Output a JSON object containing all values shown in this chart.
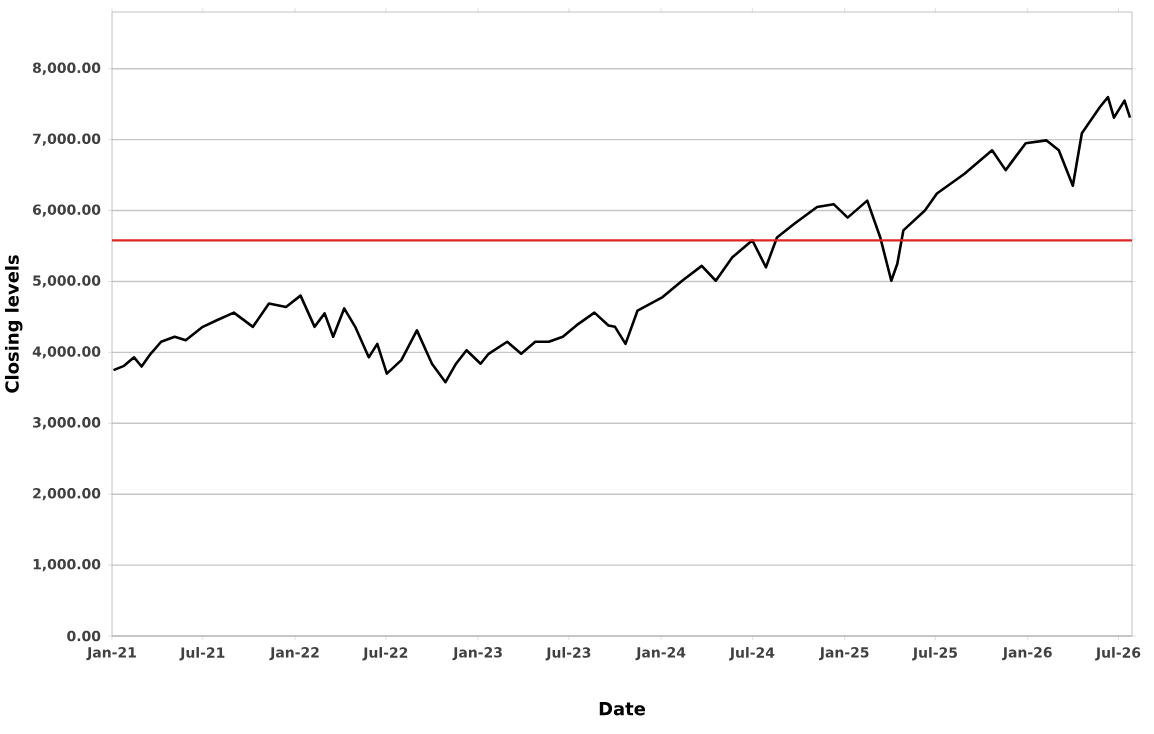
{
  "chart_data": {
    "type": "line",
    "xlabel": "Date",
    "ylabel": "Closing levels",
    "x": [
      "2021-01-04",
      "2021-01-25",
      "2021-02-14",
      "2021-03-01",
      "2021-03-19",
      "2021-04-09",
      "2021-05-06",
      "2021-05-28",
      "2021-07-01",
      "2021-07-28",
      "2021-09-01",
      "2021-10-09",
      "2021-11-10",
      "2021-12-14",
      "2022-01-12",
      "2022-02-09",
      "2022-03-01",
      "2022-03-18",
      "2022-04-09",
      "2022-05-01",
      "2022-05-28",
      "2022-06-14",
      "2022-07-03",
      "2022-08-01",
      "2022-09-01",
      "2022-10-01",
      "2022-10-28",
      "2022-11-18",
      "2022-12-09",
      "2023-01-06",
      "2023-01-22",
      "2023-02-28",
      "2023-03-28",
      "2023-04-25",
      "2023-05-22",
      "2023-06-19",
      "2023-07-16",
      "2023-08-21",
      "2023-09-18",
      "2023-10-01",
      "2023-10-22",
      "2023-11-15",
      "2024-01-04",
      "2024-02-12",
      "2024-03-22",
      "2024-04-19",
      "2024-05-22",
      "2024-07-01",
      "2024-07-28",
      "2024-08-19",
      "2024-09-22",
      "2024-11-07",
      "2024-12-10",
      "2025-01-07",
      "2025-02-15",
      "2025-03-13",
      "2025-04-04",
      "2025-04-16",
      "2025-04-28",
      "2025-06-10",
      "2025-07-04",
      "2025-08-28",
      "2025-10-22",
      "2025-11-18",
      "2025-12-28",
      "2026-02-07",
      "2026-03-04",
      "2026-04-01",
      "2026-04-19",
      "2026-05-25",
      "2026-06-10",
      "2026-06-22",
      "2026-07-13",
      "2026-07-24"
    ],
    "series": [
      {
        "color": "#000000",
        "values": [
          3750,
          3810,
          3930,
          3800,
          3980,
          4150,
          4220,
          4170,
          4360,
          4450,
          4560,
          4360,
          4690,
          4640,
          4800,
          4360,
          4550,
          4220,
          4620,
          4360,
          3930,
          4120,
          3700,
          3890,
          4310,
          3840,
          3580,
          3840,
          4030,
          3840,
          3980,
          4150,
          3980,
          4150,
          4150,
          4220,
          4380,
          4560,
          4380,
          4360,
          4120,
          4590,
          4780,
          5010,
          5220,
          5010,
          5340,
          5580,
          5200,
          5620,
          5810,
          6050,
          6090,
          5900,
          6140,
          5620,
          5010,
          5250,
          5720,
          6000,
          6240,
          6520,
          6850,
          6570,
          6950,
          6990,
          6850,
          6350,
          7090,
          7460,
          7600,
          7310,
          7550,
          7310
        ]
      }
    ],
    "xlim": [
      "2021-01-01",
      "2026-07-28"
    ],
    "xticks": [
      {
        "value": "2021-01-01",
        "label": "Jan-21"
      },
      {
        "value": "2021-07-01",
        "label": "Jul-21"
      },
      {
        "value": "2022-01-01",
        "label": "Jan-22"
      },
      {
        "value": "2022-07-01",
        "label": "Jul-22"
      },
      {
        "value": "2023-01-01",
        "label": "Jan-23"
      },
      {
        "value": "2023-07-01",
        "label": "Jul-23"
      },
      {
        "value": "2024-01-01",
        "label": "Jan-24"
      },
      {
        "value": "2024-07-01",
        "label": "Jul-24"
      },
      {
        "value": "2025-01-01",
        "label": "Jan-25"
      },
      {
        "value": "2025-07-01",
        "label": "Jul-25"
      },
      {
        "value": "2026-01-01",
        "label": "Jan-26"
      },
      {
        "value": "2026-07-01",
        "label": "Jul-26"
      }
    ],
    "ylim": [
      0,
      8800
    ],
    "yticks": [
      {
        "value": 0,
        "label": "0.00"
      },
      {
        "value": 1000,
        "label": "1,000.00"
      },
      {
        "value": 2000,
        "label": "2,000.00"
      },
      {
        "value": 3000,
        "label": "3,000.00"
      },
      {
        "value": 4000,
        "label": "4,000.00"
      },
      {
        "value": 5000,
        "label": "5,000.00"
      },
      {
        "value": 6000,
        "label": "6,000.00"
      },
      {
        "value": 7000,
        "label": "7,000.00"
      },
      {
        "value": 8000,
        "label": "8,000.00"
      }
    ],
    "ref_lines": [
      {
        "axis": "y",
        "value": 5580,
        "color": "#e02424"
      }
    ],
    "grid": "y",
    "marker": "none",
    "line_style": "solid"
  }
}
